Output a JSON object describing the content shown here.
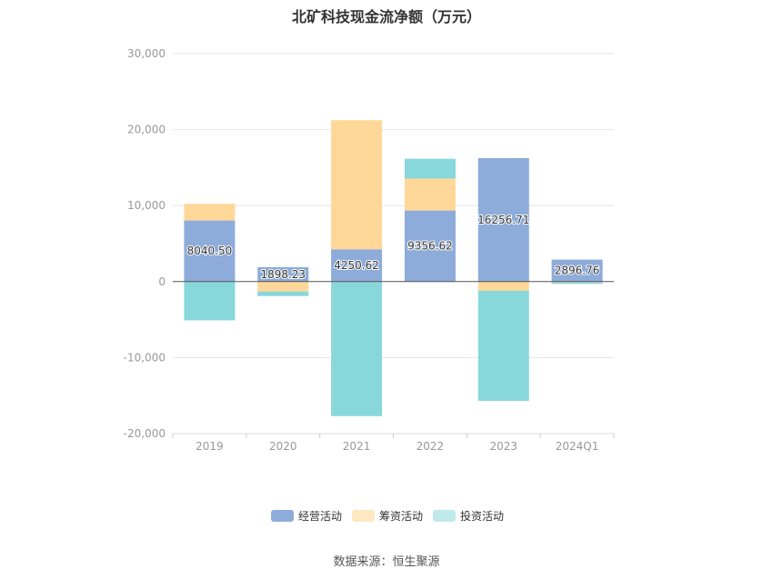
{
  "chart_data": {
    "type": "bar",
    "stacked": true,
    "title": "北矿科技现金流净额（万元）",
    "categories": [
      "2019",
      "2020",
      "2021",
      "2022",
      "2023",
      "2024Q1"
    ],
    "ylim": [
      -20000,
      30000
    ],
    "yticks": [
      30000,
      20000,
      10000,
      0,
      -10000,
      -20000
    ],
    "ytick_labels": [
      "30,000",
      "20,000",
      "10,000",
      "0",
      "-10,000",
      "-20,000"
    ],
    "grid": true,
    "legend_position": "bottom",
    "series": [
      {
        "name": "经营活动",
        "color": "#8eacd9",
        "values": [
          8040.5,
          1898.23,
          4250.62,
          9356.62,
          16256.71,
          2896.76
        ],
        "labels": [
          "8040.50",
          "1898.23",
          "4250.62",
          "9356.62",
          "16256.71",
          "2896.76"
        ]
      },
      {
        "name": "筹资活动",
        "color": "#ffd899",
        "values": [
          2200,
          -1300,
          17000,
          4200,
          -1200,
          -100
        ]
      },
      {
        "name": "投资活动",
        "color": "#88d7db",
        "values": [
          -5100,
          -600,
          -17700,
          2600,
          -14500,
          -200
        ]
      }
    ],
    "legend_colors": [
      "#8eacd9",
      "#ffe8c2",
      "#bfe9eb"
    ]
  },
  "source_text": "数据来源：恒生聚源"
}
